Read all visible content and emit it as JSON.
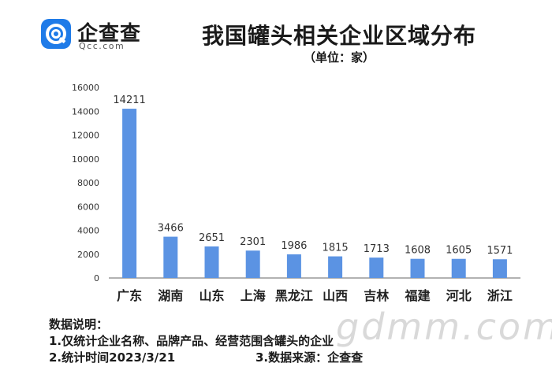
{
  "header": {
    "logo_text": "企查查",
    "logo_sub": "Qcc.com",
    "title": "我国罐头相关企业区域分布",
    "subtitle": "（单位：家）"
  },
  "colors": {
    "bar": "#5b93e3",
    "axis": "#666666",
    "brand": "#1f7be8"
  },
  "chart_data": {
    "type": "bar",
    "title": "我国罐头相关企业区域分布",
    "subtitle": "（单位：家）",
    "categories": [
      "广东",
      "湖南",
      "山东",
      "上海",
      "黑龙江",
      "山西",
      "吉林",
      "福建",
      "河北",
      "浙江"
    ],
    "values": [
      14211,
      3466,
      2651,
      2301,
      1986,
      1815,
      1713,
      1608,
      1605,
      1571
    ],
    "yticks": [
      0,
      2000,
      4000,
      6000,
      8000,
      10000,
      12000,
      14000,
      16000
    ],
    "ylim": [
      0,
      16000
    ],
    "xlabel": "",
    "ylabel": "",
    "grid": false,
    "data_labels": true
  },
  "notes": {
    "heading": "数据说明：",
    "line1": "1.仅统计企业名称、品牌产品、经营范围含罐头的企业",
    "line2_left": "2.统计时间2023/3/21",
    "line2_right": "3.数据来源：企查查"
  },
  "watermark": "gdmm.com"
}
